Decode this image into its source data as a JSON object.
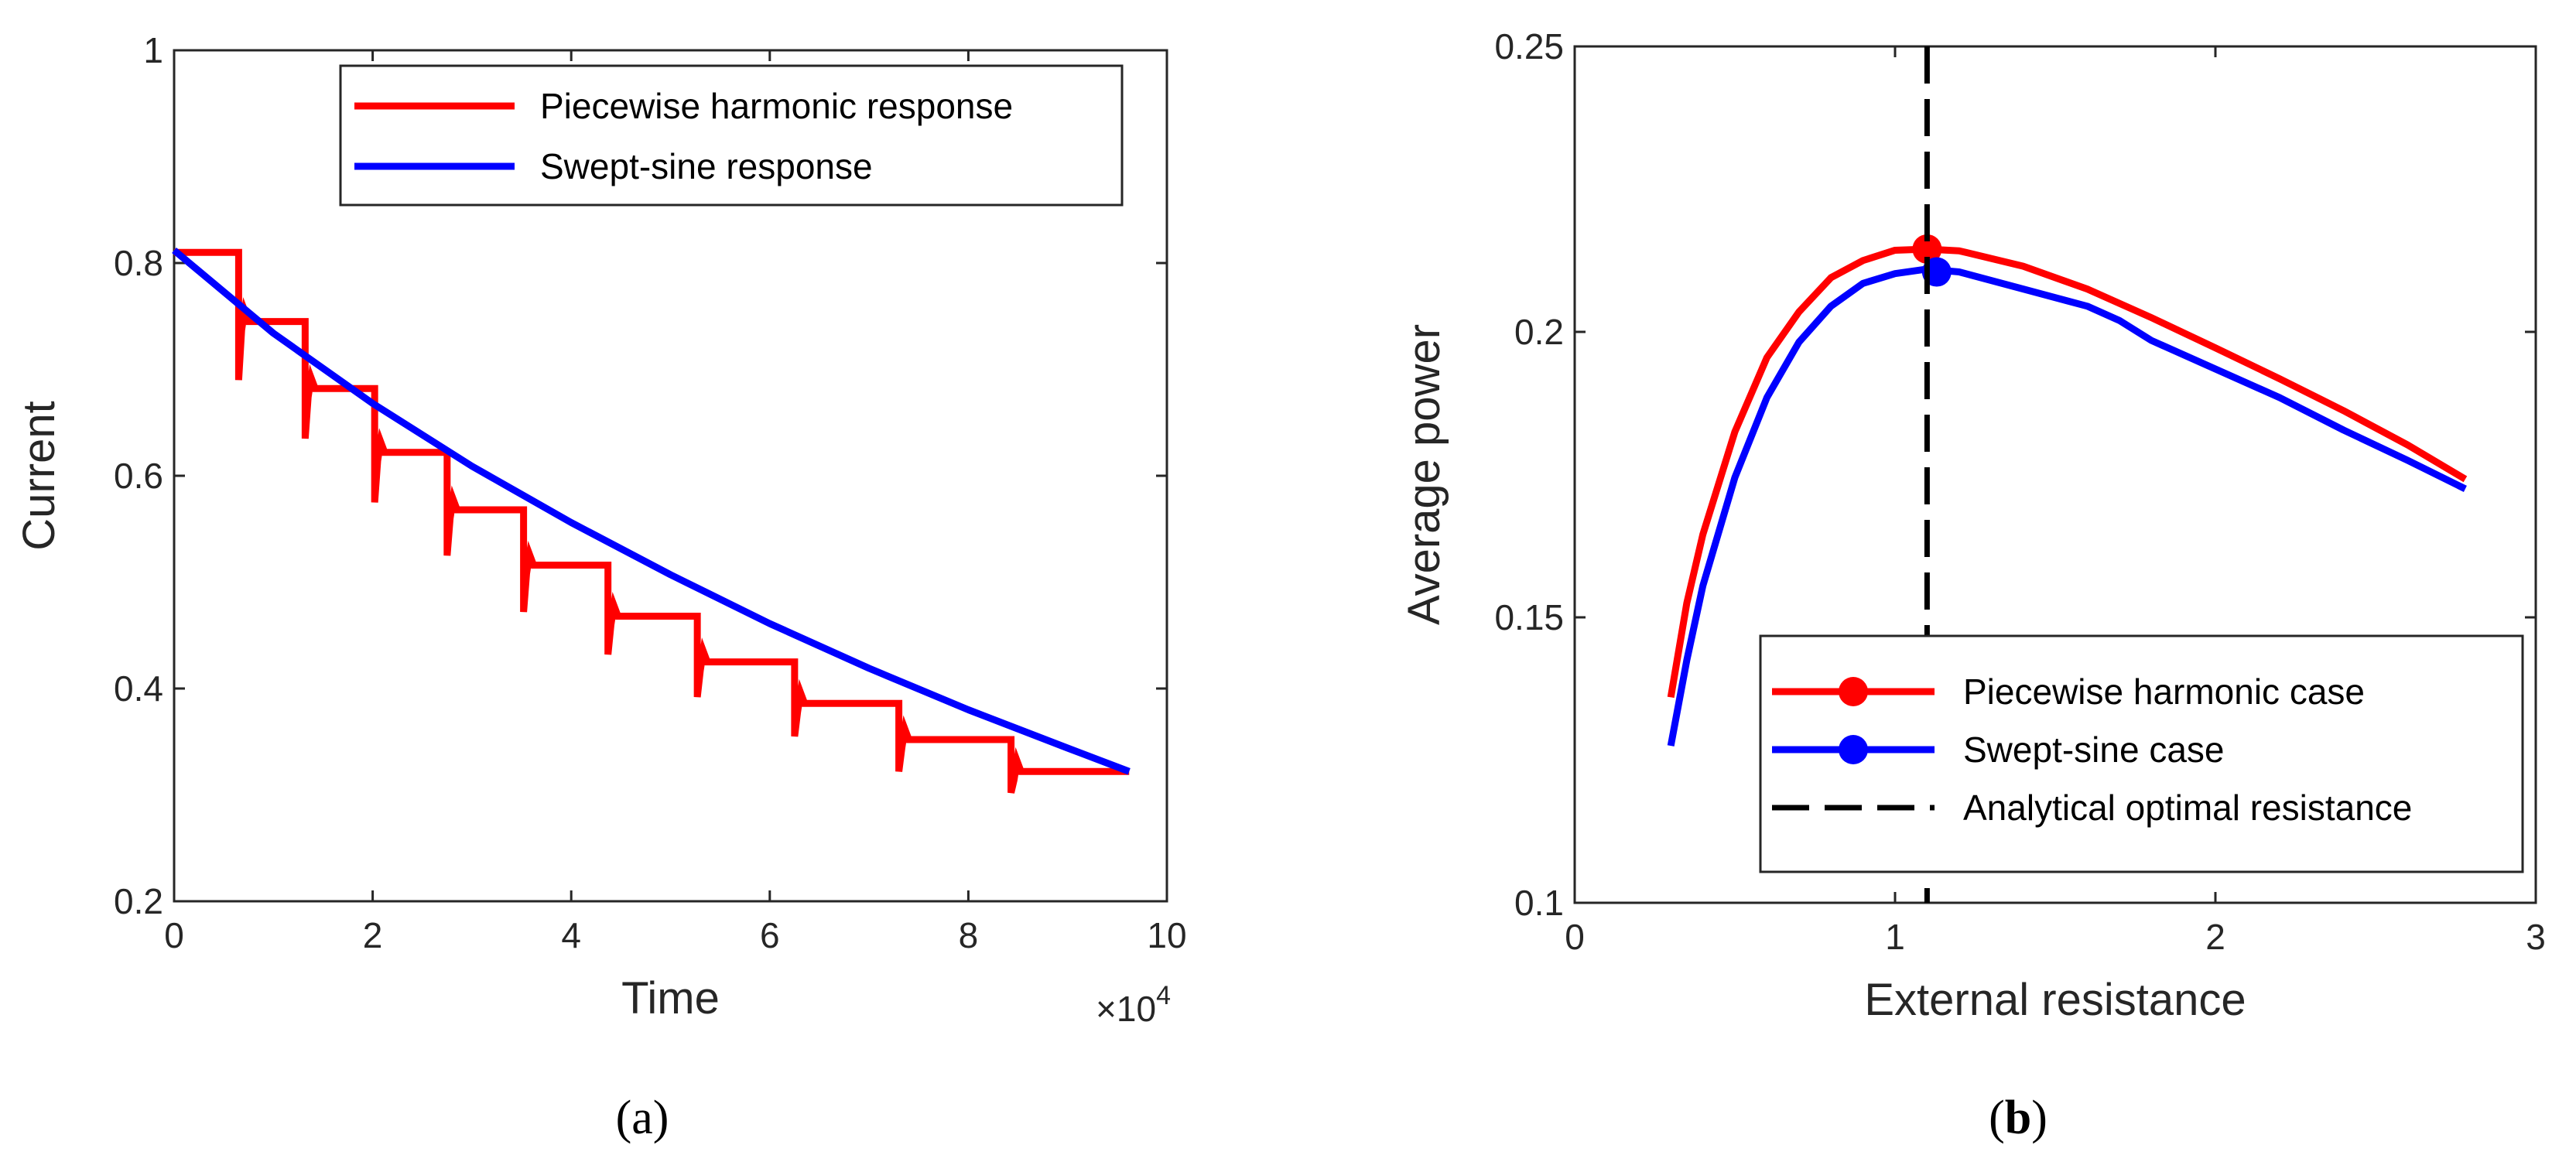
{
  "figure": {
    "panel_a_label": {
      "open": "(",
      "letter": "a",
      "close": ")"
    },
    "panel_b_label": {
      "open": "(",
      "letter": "b",
      "close": ")"
    }
  },
  "colors": {
    "red": "#ff0000",
    "blue": "#0000ff",
    "black": "#000000",
    "axis": "#262626"
  },
  "chart_data": [
    {
      "id": "a",
      "type": "line",
      "title": "",
      "xlabel": "Time",
      "ylabel": "Current",
      "x_multiplier_text": {
        "base": "×10",
        "exp": "4"
      },
      "xlim": [
        0,
        10
      ],
      "ylim": [
        0.2,
        1.0
      ],
      "xticks": [
        0,
        2,
        4,
        6,
        8,
        10
      ],
      "xtick_labels": [
        "0",
        "2",
        "4",
        "6",
        "8",
        "10"
      ],
      "yticks": [
        0.2,
        0.4,
        0.6,
        0.8,
        1.0
      ],
      "ytick_labels": [
        "0.2",
        "0.4",
        "0.6",
        "0.8",
        "1"
      ],
      "legend_location": "top-right",
      "series": [
        {
          "name": "Piecewise harmonic response",
          "color": "#ff0000",
          "style": "step",
          "note": "step levels with transient dips at each step onset; x in units of 1e4",
          "step_x": [
            0,
            0.65,
            1.32,
            2.02,
            2.75,
            3.52,
            4.37,
            5.27,
            6.25,
            7.3,
            8.43,
            9.62
          ],
          "levels": [
            0.81,
            0.745,
            0.682,
            0.622,
            0.568,
            0.516,
            0.468,
            0.425,
            0.386,
            0.352,
            0.322
          ],
          "dip_minima": [
            0.69,
            0.635,
            0.575,
            0.525,
            0.472,
            0.432,
            0.392,
            0.355,
            0.322,
            0.302
          ]
        },
        {
          "name": "Swept-sine response",
          "color": "#0000ff",
          "style": "solid",
          "x": [
            0,
            1,
            2,
            3,
            4,
            5,
            6,
            7,
            8,
            9,
            9.62
          ],
          "y": [
            0.812,
            0.734,
            0.668,
            0.609,
            0.556,
            0.507,
            0.461,
            0.419,
            0.38,
            0.344,
            0.322
          ]
        }
      ]
    },
    {
      "id": "b",
      "type": "line",
      "title": "",
      "xlabel": "External resistance",
      "ylabel": "Average power",
      "xlim": [
        0,
        3
      ],
      "ylim": [
        0.1,
        0.25
      ],
      "xticks": [
        0,
        1,
        2,
        3
      ],
      "xtick_labels": [
        "0",
        "1",
        "2",
        "3"
      ],
      "yticks": [
        0.1,
        0.15,
        0.2,
        0.25
      ],
      "ytick_labels": [
        "0.1",
        "0.15",
        "0.2",
        "0.25"
      ],
      "legend_location": "bottom-right",
      "series": [
        {
          "name": "Piecewise harmonic case",
          "color": "#ff0000",
          "style": "solid",
          "marker": {
            "x": 1.1,
            "y": 0.2145
          },
          "x": [
            0.3,
            0.35,
            0.4,
            0.5,
            0.6,
            0.7,
            0.8,
            0.9,
            1.0,
            1.1,
            1.2,
            1.4,
            1.6,
            1.8,
            2.0,
            2.2,
            2.4,
            2.6,
            2.78
          ],
          "y": [
            0.136,
            0.1525,
            0.1645,
            0.1825,
            0.1955,
            0.2035,
            0.2095,
            0.2125,
            0.2143,
            0.2145,
            0.2142,
            0.2115,
            0.2075,
            0.2025,
            0.1972,
            0.1918,
            0.1862,
            0.1802,
            0.1742
          ]
        },
        {
          "name": "Swept-sine case",
          "color": "#0000ff",
          "style": "solid",
          "marker": {
            "x": 1.13,
            "y": 0.2105
          },
          "x": [
            0.3,
            0.35,
            0.4,
            0.5,
            0.6,
            0.7,
            0.8,
            0.9,
            1.0,
            1.1,
            1.2,
            1.4,
            1.6,
            1.7,
            1.8,
            2.0,
            2.2,
            2.4,
            2.6,
            2.78
          ],
          "y": [
            0.1275,
            0.1425,
            0.1555,
            0.1745,
            0.1885,
            0.1982,
            0.2045,
            0.2085,
            0.2102,
            0.211,
            0.2105,
            0.2075,
            0.2045,
            0.202,
            0.1985,
            0.1935,
            0.1885,
            0.1828,
            0.1775,
            0.1725
          ]
        },
        {
          "name": "Analytical optimal resistance",
          "color": "#000000",
          "style": "dashed",
          "x_const": 1.1
        }
      ]
    }
  ]
}
